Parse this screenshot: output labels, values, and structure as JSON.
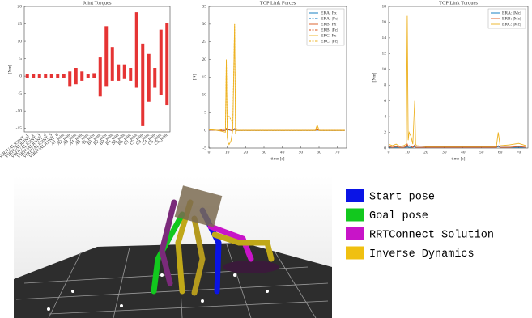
{
  "chart_data": [
    {
      "type": "range",
      "title": "Joint Torques",
      "ylabel": "[Nm]",
      "color": "#e01010",
      "categories": [
        "VIRTUALJOINT_1",
        "VIRTUALJOINT_2",
        "VIRTUALJOINT_3",
        "VIRTUALJOINT_4",
        "VIRTUALJOINT_5",
        "VIRTUALJOINT_6",
        "A1_joint",
        "A2_joint",
        "A3_joint",
        "A4_joint",
        "A5_joint",
        "A6_joint",
        "B1_joint",
        "B2_joint",
        "B3_joint",
        "B4_joint",
        "B5_joint",
        "B6_joint",
        "C1_joint",
        "C2_joint",
        "C3_joint",
        "C4_joint",
        "C5_joint",
        "C6_joint"
      ],
      "low": [
        -0.2,
        -0.2,
        -0.2,
        -0.2,
        -0.2,
        -0.2,
        -0.3,
        -2.5,
        -2,
        -1,
        -0.3,
        -0.3,
        -5.5,
        -2.5,
        -1,
        -1,
        -0.5,
        -1,
        -3,
        -14,
        -7,
        -3,
        -5,
        -8
      ],
      "high": [
        0.2,
        0.2,
        0.2,
        0.2,
        0.2,
        0.2,
        0.3,
        1,
        2,
        1,
        0.3,
        0.5,
        5,
        14,
        8,
        3,
        3,
        2,
        18,
        9,
        6,
        2,
        13,
        15
      ],
      "ylim": [
        -16,
        20
      ],
      "yticks": [
        -15,
        -10,
        -5,
        0,
        5,
        10,
        15,
        20
      ]
    },
    {
      "type": "line",
      "title": "TCP Link Forces",
      "xlabel": "time [s]",
      "ylabel": "[N]",
      "x": [
        0,
        5,
        9,
        9.5,
        10,
        10.5,
        11,
        12,
        13,
        14,
        14.5,
        15,
        16,
        20,
        30,
        40,
        50,
        58,
        59,
        60,
        70,
        74
      ],
      "series": [
        {
          "name": "ERA: Fx",
          "color": "#0072bd",
          "dash": false,
          "values": [
            0.1,
            0,
            0,
            0.3,
            0,
            0.2,
            0.1,
            0,
            0,
            0.3,
            0,
            0,
            0,
            0,
            0,
            0,
            0,
            0,
            0.1,
            0,
            0,
            0
          ]
        },
        {
          "name": "ERA: |Fc|",
          "color": "#0072bd",
          "dash": true,
          "values": [
            0.1,
            0,
            0,
            0.3,
            0,
            0.2,
            0.1,
            0,
            0,
            0.3,
            0,
            0,
            0,
            0,
            0,
            0,
            0,
            0,
            0.1,
            0,
            0,
            0
          ]
        },
        {
          "name": "ERB: Fx",
          "color": "#d95319",
          "dash": false,
          "values": [
            0.1,
            0,
            0,
            0.5,
            0,
            0.3,
            0.2,
            0,
            0,
            0.5,
            0,
            0,
            0,
            0,
            0,
            0,
            0,
            0,
            0.2,
            0,
            0,
            0
          ]
        },
        {
          "name": "ERB: |Fc|",
          "color": "#d95319",
          "dash": true,
          "values": [
            0.1,
            0,
            0,
            0.5,
            0,
            0.3,
            0.2,
            0,
            0,
            0.5,
            0,
            0,
            0,
            0,
            0,
            0,
            0,
            0,
            0.2,
            0,
            0,
            0
          ]
        },
        {
          "name": "ERC: Fx",
          "color": "#edb120",
          "dash": false,
          "values": [
            0.2,
            0,
            -0.5,
            20,
            -2,
            -3.5,
            -4,
            -3,
            0,
            30,
            -1,
            0,
            0,
            0,
            0,
            0,
            0,
            0,
            1.5,
            0,
            0,
            0
          ]
        },
        {
          "name": "ERC: |Fc|",
          "color": "#edb120",
          "dash": true,
          "values": [
            0.2,
            0,
            0.5,
            20,
            2,
            3.5,
            4,
            3,
            2,
            30,
            1,
            0.5,
            0,
            0,
            0,
            0,
            0,
            0,
            1.5,
            0,
            0,
            0
          ]
        }
      ],
      "xlim": [
        0,
        75
      ],
      "xticks": [
        0,
        10,
        20,
        30,
        40,
        50,
        60,
        70
      ],
      "ylim": [
        -5,
        35
      ],
      "yticks": [
        -5,
        0,
        5,
        10,
        15,
        20,
        25,
        30,
        35
      ]
    },
    {
      "type": "line",
      "title": "TCP Link Torques",
      "xlabel": "time [s]",
      "ylabel": "[Nm]",
      "x": [
        0,
        2,
        4,
        6,
        8,
        9.5,
        10,
        10.5,
        11,
        12,
        13,
        14,
        14.5,
        15,
        20,
        30,
        40,
        50,
        58,
        59,
        60,
        65,
        70,
        74
      ],
      "series": [
        {
          "name": "ERA: |Mc|",
          "color": "#0072bd",
          "dash": false,
          "values": [
            0.1,
            0.1,
            0.1,
            0.1,
            0.1,
            0.1,
            0.3,
            0.1,
            0.1,
            0.1,
            0.1,
            0.2,
            0.1,
            0.1,
            0.1,
            0.1,
            0.1,
            0.1,
            0.1,
            0.2,
            0.1,
            0.1,
            0.1,
            0.1
          ]
        },
        {
          "name": "ERB: |Mc|",
          "color": "#d95319",
          "dash": false,
          "values": [
            0.2,
            0.1,
            0.2,
            0.1,
            0.1,
            0.2,
            0.5,
            0.2,
            0.3,
            0.2,
            0.1,
            0.4,
            0.1,
            0.1,
            0.1,
            0.1,
            0.1,
            0.1,
            0.1,
            0.3,
            0.1,
            0.1,
            0.2,
            0.1
          ]
        },
        {
          "name": "ERC: |Mc|",
          "color": "#edb120",
          "dash": false,
          "values": [
            0.5,
            0.3,
            0.5,
            0.2,
            0.3,
            0.5,
            16.8,
            1,
            2,
            1.5,
            0.5,
            6,
            0.5,
            0.3,
            0.2,
            0.2,
            0.2,
            0.2,
            0.2,
            2,
            0.3,
            0.4,
            0.6,
            0.3
          ]
        }
      ],
      "xlim": [
        0,
        75
      ],
      "xticks": [
        0,
        10,
        20,
        30,
        40,
        50,
        60,
        70
      ],
      "ylim": [
        0,
        18
      ],
      "yticks": [
        0,
        2,
        4,
        6,
        8,
        10,
        12,
        14,
        16,
        18
      ]
    }
  ],
  "pose_legend": [
    {
      "label": "Start pose",
      "color": "#0a14e6"
    },
    {
      "label": "Goal pose",
      "color": "#12c81e"
    },
    {
      "label": "RRTConnect Solution",
      "color": "#c814c8"
    },
    {
      "label": "Inverse Dynamics",
      "color": "#f0c010"
    }
  ]
}
